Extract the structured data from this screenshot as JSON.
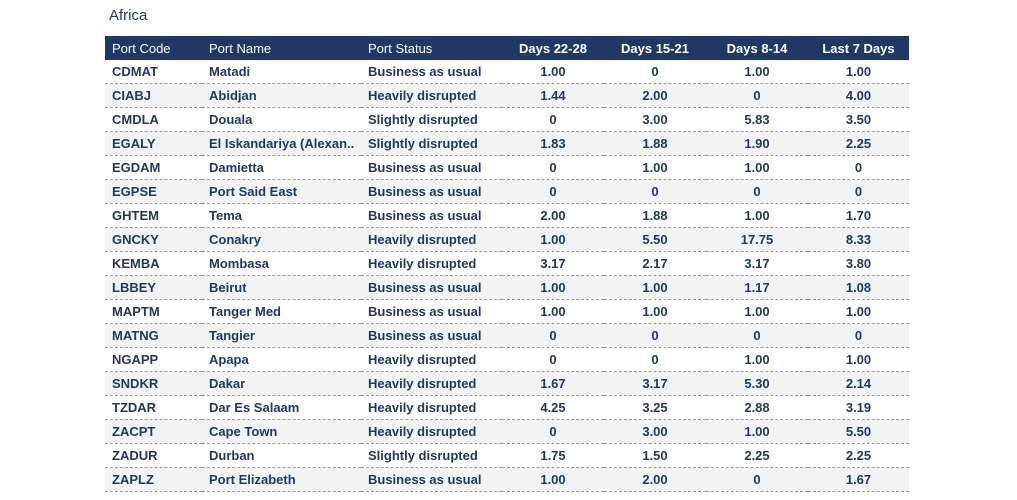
{
  "region": "Africa",
  "columns": [
    "Port Code",
    "Port Name",
    "Port Status",
    "Days 22-28",
    "Days 15-21",
    "Days 8-14",
    "Last 7 Days"
  ],
  "rows": [
    [
      "CDMAT",
      "Matadi",
      "Business as usual",
      "1.00",
      "0",
      "1.00",
      "1.00"
    ],
    [
      "CIABJ",
      "Abidjan",
      "Heavily disrupted",
      "1.44",
      "2.00",
      "0",
      "4.00"
    ],
    [
      "CMDLA",
      "Douala",
      "Slightly disrupted",
      "0",
      "3.00",
      "5.83",
      "3.50"
    ],
    [
      "EGALY",
      "El Iskandariya (Alexan..",
      "Slightly disrupted",
      "1.83",
      "1.88",
      "1.90",
      "2.25"
    ],
    [
      "EGDAM",
      "Damietta",
      "Business as usual",
      "0",
      "1.00",
      "1.00",
      "0"
    ],
    [
      "EGPSE",
      "Port Said East",
      "Business as usual",
      "0",
      "0",
      "0",
      "0"
    ],
    [
      "GHTEM",
      "Tema",
      "Business as usual",
      "2.00",
      "1.88",
      "1.00",
      "1.70"
    ],
    [
      "GNCKY",
      "Conakry",
      "Heavily disrupted",
      "1.00",
      "5.50",
      "17.75",
      "8.33"
    ],
    [
      "KEMBA",
      "Mombasa",
      "Heavily disrupted",
      "3.17",
      "2.17",
      "3.17",
      "3.80"
    ],
    [
      "LBBEY",
      "Beirut",
      "Business as usual",
      "1.00",
      "1.00",
      "1.17",
      "1.08"
    ],
    [
      "MAPTM",
      "Tanger Med",
      "Business as usual",
      "1.00",
      "1.00",
      "1.00",
      "1.00"
    ],
    [
      "MATNG",
      "Tangier",
      "Business as usual",
      "0",
      "0",
      "0",
      "0"
    ],
    [
      "NGAPP",
      "Apapa",
      "Heavily disrupted",
      "0",
      "0",
      "1.00",
      "1.00"
    ],
    [
      "SNDKR",
      "Dakar",
      "Heavily disrupted",
      "1.67",
      "3.17",
      "5.30",
      "2.14"
    ],
    [
      "TZDAR",
      "Dar Es Salaam",
      "Heavily disrupted",
      "4.25",
      "3.25",
      "2.88",
      "3.19"
    ],
    [
      "ZACPT",
      "Cape Town",
      "Heavily disrupted",
      "0",
      "3.00",
      "1.00",
      "5.50"
    ],
    [
      "ZADUR",
      "Durban",
      "Slightly disrupted",
      "1.75",
      "1.50",
      "2.25",
      "2.25"
    ],
    [
      "ZAPLZ",
      "Port Elizabeth",
      "Business as usual",
      "1.00",
      "2.00",
      "0",
      "1.67"
    ]
  ],
  "colors": {
    "header_bg": "#1f3864",
    "header_text": "#ffffff",
    "body_text": "#1f3864",
    "stripe": "#f3f3f3"
  }
}
